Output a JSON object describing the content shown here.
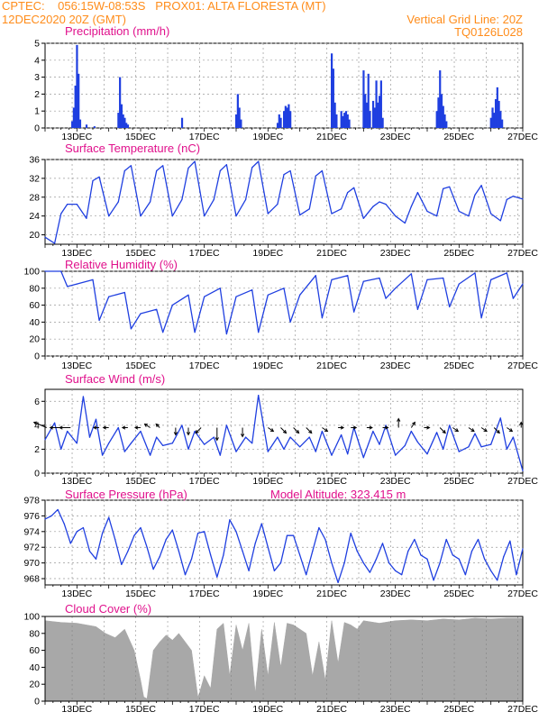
{
  "header": {
    "line1_left": "CPTEC:    056:15W-08:53S   PROX01: ALTA FLORESTA (MT)",
    "line2_left": "12DEC2020 20Z (GMT)",
    "vertical_grid": "Vertical Grid Line: 20Z",
    "code": "TQ0126L028"
  },
  "colors": {
    "header": "#ff8c1a",
    "title": "#e0118c",
    "series": "#1f3fe0",
    "cloud": "#a8a8a8",
    "grid": "#9a9a9a"
  },
  "chart_data": [
    {
      "type": "bar",
      "title": "Precipitation  (mm/h)",
      "x_labels": [
        "13DEC",
        "15DEC",
        "17DEC",
        "19DEC",
        "21DEC",
        "23DEC",
        "25DEC",
        "27DEC"
      ],
      "ylim": [
        0,
        5
      ],
      "yticks": [
        "0",
        "1",
        "2",
        "3",
        "4",
        "5"
      ],
      "x_days": [
        12.85,
        12.9,
        12.95,
        13.0,
        13.05,
        13.1,
        13.3,
        13.55,
        14.3,
        14.35,
        14.4,
        14.45,
        14.5,
        14.55,
        14.6,
        16.3,
        18.0,
        18.05,
        18.1,
        18.15,
        19.3,
        19.35,
        19.4,
        19.5,
        19.55,
        19.6,
        19.65,
        19.7,
        21.0,
        21.05,
        21.1,
        21.15,
        21.3,
        21.35,
        21.4,
        21.45,
        21.5,
        21.55,
        22.0,
        22.05,
        22.1,
        22.15,
        22.2,
        22.3,
        22.35,
        22.4,
        22.45,
        22.5,
        22.55,
        22.6,
        24.3,
        24.35,
        24.4,
        24.45,
        24.5,
        24.55,
        24.6,
        26.0,
        26.05,
        26.1,
        26.15,
        26.2,
        26.25,
        26.3,
        26.35
      ],
      "values": [
        0.4,
        1.2,
        2.5,
        4.9,
        3.2,
        0.5,
        0.2,
        0.1,
        0.9,
        3.0,
        1.4,
        0.8,
        0.6,
        0.3,
        0.2,
        0.6,
        0.8,
        2.0,
        1.2,
        0.5,
        0.3,
        0.8,
        0.6,
        1.0,
        1.3,
        1.2,
        1.4,
        1.0,
        4.4,
        3.5,
        1.5,
        0.8,
        1.0,
        0.7,
        0.9,
        1.0,
        0.8,
        0.5,
        3.4,
        2.0,
        1.5,
        3.2,
        1.0,
        1.6,
        1.2,
        2.8,
        1.5,
        1.9,
        2.8,
        0.6,
        1.0,
        1.8,
        3.4,
        2.0,
        1.3,
        0.8,
        0.4,
        0.6,
        1.2,
        0.9,
        1.7,
        2.4,
        1.6,
        1.0,
        0.5
      ]
    },
    {
      "type": "line",
      "title": "Surface Temperature (nC)",
      "x_labels": [
        "13DEC",
        "15DEC",
        "17DEC",
        "19DEC",
        "21DEC",
        "23DEC",
        "25DEC",
        "27DEC"
      ],
      "ylim": [
        18,
        36
      ],
      "yticks": [
        "20",
        "24",
        "28",
        "32",
        "36"
      ],
      "x_days": [
        12.0,
        12.3,
        12.5,
        12.7,
        13.0,
        13.3,
        13.5,
        13.7,
        14.0,
        14.3,
        14.5,
        14.7,
        15.0,
        15.3,
        15.5,
        15.7,
        16.0,
        16.3,
        16.5,
        16.7,
        17.0,
        17.3,
        17.5,
        17.7,
        18.0,
        18.3,
        18.5,
        18.7,
        19.0,
        19.3,
        19.5,
        19.7,
        20.0,
        20.3,
        20.5,
        20.7,
        21.0,
        21.3,
        21.5,
        21.7,
        22.0,
        22.3,
        22.5,
        22.7,
        23.0,
        23.3,
        23.5,
        23.7,
        24.0,
        24.3,
        24.5,
        24.7,
        25.0,
        25.3,
        25.5,
        25.7,
        26.0,
        26.3,
        26.5,
        26.7,
        27.0
      ],
      "values": [
        19.5,
        18.2,
        24.5,
        26.5,
        26.5,
        23.5,
        31.5,
        32.3,
        24.0,
        27.0,
        33.6,
        34.7,
        24.0,
        27.0,
        33.6,
        34.7,
        24.0,
        27.5,
        34.2,
        35.6,
        24.0,
        27.5,
        33.6,
        34.9,
        24.0,
        27.5,
        34.3,
        35.6,
        24.5,
        26.5,
        32.8,
        33.6,
        24.2,
        25.5,
        32.5,
        33.6,
        24.5,
        25.5,
        29.0,
        30.0,
        23.5,
        26.0,
        27.0,
        26.5,
        24.0,
        22.5,
        26.0,
        29.0,
        25.0,
        24.0,
        29.8,
        30.2,
        25.0,
        24.0,
        28.5,
        30.5,
        24.5,
        23.0,
        27.5,
        28.2,
        27.6
      ]
    },
    {
      "type": "line",
      "title": "Relative Humidity (%)",
      "x_labels": [
        "13DEC",
        "15DEC",
        "17DEC",
        "19DEC",
        "21DEC",
        "23DEC",
        "25DEC",
        "27DEC"
      ],
      "ylim": [
        0,
        100
      ],
      "yticks": [
        "0",
        "20",
        "40",
        "60",
        "80",
        "100"
      ],
      "x_days": [
        12.0,
        12.5,
        12.7,
        13.0,
        13.5,
        13.7,
        14.0,
        14.5,
        14.7,
        15.0,
        15.5,
        15.7,
        16.0,
        16.5,
        16.7,
        17.0,
        17.5,
        17.7,
        18.0,
        18.5,
        18.7,
        19.0,
        19.5,
        19.7,
        20.0,
        20.5,
        20.7,
        21.0,
        21.5,
        21.7,
        22.0,
        22.5,
        22.7,
        23.0,
        23.5,
        23.7,
        24.0,
        24.5,
        24.7,
        25.0,
        25.5,
        25.7,
        26.0,
        26.5,
        26.7,
        27.0
      ],
      "values": [
        100,
        100,
        82,
        85,
        90,
        42,
        70,
        75,
        32,
        50,
        55,
        28,
        60,
        72,
        28,
        70,
        80,
        26,
        70,
        78,
        28,
        72,
        80,
        40,
        72,
        95,
        45,
        90,
        95,
        52,
        88,
        92,
        68,
        80,
        97,
        55,
        90,
        92,
        58,
        85,
        98,
        45,
        90,
        98,
        68,
        85
      ]
    },
    {
      "type": "line",
      "title": "Surface Wind (m/s)",
      "x_labels": [
        "13DEC",
        "15DEC",
        "17DEC",
        "19DEC",
        "21DEC",
        "23DEC",
        "25DEC",
        "27DEC"
      ],
      "ylim": [
        0,
        7
      ],
      "yticks": [
        "0",
        "2",
        "4",
        "6"
      ],
      "x_days": [
        12.0,
        12.3,
        12.5,
        12.7,
        13.0,
        13.2,
        13.4,
        13.6,
        13.8,
        14.0,
        14.3,
        14.5,
        14.7,
        15.0,
        15.3,
        15.5,
        15.7,
        16.0,
        16.3,
        16.5,
        16.7,
        17.0,
        17.3,
        17.5,
        17.7,
        18.0,
        18.3,
        18.5,
        18.7,
        19.0,
        19.3,
        19.5,
        19.7,
        20.0,
        20.3,
        20.5,
        20.7,
        21.0,
        21.3,
        21.5,
        21.7,
        22.0,
        22.3,
        22.5,
        22.7,
        23.0,
        23.3,
        23.5,
        23.7,
        24.0,
        24.3,
        24.5,
        24.7,
        25.0,
        25.3,
        25.5,
        25.7,
        26.0,
        26.3,
        26.5,
        26.7,
        27.0
      ],
      "values": [
        2.8,
        4.2,
        2.0,
        3.5,
        2.5,
        6.4,
        3.0,
        4.5,
        1.5,
        2.5,
        3.8,
        1.8,
        2.5,
        3.5,
        1.5,
        3.0,
        2.3,
        2.5,
        4.0,
        2.0,
        3.5,
        2.4,
        3.0,
        1.5,
        4.0,
        1.8,
        3.0,
        2.5,
        6.5,
        1.8,
        3.0,
        2.0,
        3.0,
        2.2,
        3.0,
        1.8,
        3.5,
        1.5,
        3.2,
        1.6,
        3.8,
        1.3,
        3.5,
        2.4,
        4.0,
        1.5,
        2.3,
        3.5,
        2.6,
        1.6,
        3.4,
        2.0,
        4.0,
        1.8,
        2.2,
        3.3,
        2.2,
        2.4,
        4.6,
        2.0,
        3.0,
        0.2
      ],
      "arrows": [
        {
          "x": 12.05,
          "dx": -14,
          "dy": -6
        },
        {
          "x": 12.5,
          "dx": -12,
          "dy": 0
        },
        {
          "x": 12.8,
          "dx": -12,
          "dy": 0
        },
        {
          "x": 13.7,
          "dx": -6,
          "dy": 0
        },
        {
          "x": 14.0,
          "dx": -6,
          "dy": 0
        },
        {
          "x": 14.6,
          "dx": -6,
          "dy": 0
        },
        {
          "x": 15.0,
          "dx": -6,
          "dy": 0
        },
        {
          "x": 15.3,
          "dx": -6,
          "dy": -4
        },
        {
          "x": 15.6,
          "dx": -4,
          "dy": -4
        },
        {
          "x": 16.1,
          "dx": 0,
          "dy": 8
        },
        {
          "x": 16.5,
          "dx": 0,
          "dy": 8
        },
        {
          "x": 16.9,
          "dx": -6,
          "dy": 6
        },
        {
          "x": 17.4,
          "dx": 0,
          "dy": 14
        },
        {
          "x": 18.2,
          "dx": 0,
          "dy": 10
        },
        {
          "x": 19.0,
          "dx": 6,
          "dy": 4
        },
        {
          "x": 19.4,
          "dx": 6,
          "dy": 6
        },
        {
          "x": 19.8,
          "dx": 6,
          "dy": 6
        },
        {
          "x": 20.2,
          "dx": 6,
          "dy": 6
        },
        {
          "x": 20.7,
          "dx": 6,
          "dy": 4
        },
        {
          "x": 21.2,
          "dx": 6,
          "dy": 0
        },
        {
          "x": 21.6,
          "dx": 6,
          "dy": 0
        },
        {
          "x": 22.1,
          "dx": 6,
          "dy": 0
        },
        {
          "x": 22.6,
          "dx": 6,
          "dy": 0
        },
        {
          "x": 23.1,
          "dx": 0,
          "dy": -10
        },
        {
          "x": 23.5,
          "dx": 4,
          "dy": -6
        },
        {
          "x": 23.9,
          "dx": 6,
          "dy": 0
        },
        {
          "x": 24.4,
          "dx": 6,
          "dy": 6
        },
        {
          "x": 24.8,
          "dx": 6,
          "dy": 4
        },
        {
          "x": 25.3,
          "dx": 6,
          "dy": 4
        },
        {
          "x": 25.7,
          "dx": 6,
          "dy": 4
        },
        {
          "x": 26.1,
          "dx": 6,
          "dy": 6
        },
        {
          "x": 26.5,
          "dx": 6,
          "dy": 4
        },
        {
          "x": 26.95,
          "dx": 0,
          "dy": -6
        }
      ]
    },
    {
      "type": "line",
      "title": "Surface Pressure (hPa)",
      "annotation": "Model Altitude: 323.415 m",
      "x_labels": [
        "13DEC",
        "15DEC",
        "17DEC",
        "19DEC",
        "21DEC",
        "23DEC",
        "25DEC",
        "27DEC"
      ],
      "ylim": [
        967.2,
        978
      ],
      "yticks": [
        "968",
        "970",
        "972",
        "974",
        "976",
        "978"
      ],
      "x_days": [
        12.0,
        12.2,
        12.4,
        12.6,
        12.8,
        13.0,
        13.2,
        13.4,
        13.6,
        13.8,
        14.0,
        14.2,
        14.4,
        14.6,
        14.8,
        15.0,
        15.2,
        15.4,
        15.6,
        15.8,
        16.0,
        16.2,
        16.4,
        16.6,
        16.8,
        17.0,
        17.2,
        17.4,
        17.6,
        17.8,
        18.0,
        18.2,
        18.4,
        18.6,
        18.8,
        19.0,
        19.2,
        19.4,
        19.6,
        19.8,
        20.0,
        20.2,
        20.4,
        20.6,
        20.8,
        21.0,
        21.2,
        21.4,
        21.6,
        21.8,
        22.0,
        22.2,
        22.4,
        22.6,
        22.8,
        23.0,
        23.2,
        23.4,
        23.6,
        23.8,
        24.0,
        24.2,
        24.4,
        24.6,
        24.8,
        25.0,
        25.2,
        25.4,
        25.6,
        25.8,
        26.0,
        26.2,
        26.4,
        26.6,
        26.8,
        27.0
      ],
      "values": [
        975.6,
        976.0,
        976.8,
        975.0,
        972.5,
        974.0,
        974.5,
        971.5,
        970.5,
        973.8,
        975.8,
        973.0,
        969.8,
        971.5,
        973.5,
        974.5,
        972.0,
        969.2,
        970.8,
        973.0,
        974.2,
        971.5,
        968.5,
        970.5,
        973.8,
        974.0,
        971.0,
        968.2,
        971.0,
        975.5,
        974.0,
        971.5,
        969.0,
        972.5,
        975.0,
        972.0,
        969.0,
        970.0,
        973.5,
        973.5,
        971.0,
        968.5,
        971.5,
        974.5,
        973.0,
        970.0,
        967.5,
        970.0,
        973.8,
        971.5,
        970.0,
        968.8,
        970.5,
        972.5,
        970.0,
        969.0,
        968.5,
        971.5,
        973.0,
        971.0,
        970.5,
        967.8,
        970.0,
        973.0,
        971.0,
        970.5,
        968.5,
        971.5,
        973.0,
        970.5,
        969.0,
        967.8,
        970.8,
        972.8,
        968.5,
        971.8
      ]
    },
    {
      "type": "area",
      "title": "Cloud Cover (%)",
      "x_labels": [
        "13DEC",
        "15DEC",
        "17DEC",
        "19DEC",
        "21DEC",
        "23DEC",
        "25DEC",
        "27DEC"
      ],
      "ylim": [
        0,
        100
      ],
      "yticks": [
        "0",
        "20",
        "40",
        "60",
        "80",
        "100"
      ],
      "x_days": [
        12.0,
        12.5,
        13.0,
        13.3,
        13.6,
        13.9,
        14.2,
        14.5,
        14.8,
        15.0,
        15.1,
        15.2,
        15.4,
        15.6,
        15.8,
        16.0,
        16.2,
        16.4,
        16.6,
        16.8,
        16.85,
        17.0,
        17.2,
        17.4,
        17.6,
        17.8,
        18.0,
        18.2,
        18.4,
        18.6,
        18.8,
        19.0,
        19.2,
        19.4,
        19.6,
        19.8,
        20.0,
        20.2,
        20.4,
        20.6,
        20.8,
        21.0,
        21.2,
        21.4,
        21.6,
        21.8,
        22.0,
        22.5,
        23.0,
        23.5,
        24.0,
        24.5,
        25.0,
        25.5,
        26.0,
        26.5,
        27.0
      ],
      "values": [
        95,
        93,
        92,
        90,
        88,
        80,
        75,
        85,
        60,
        25,
        5,
        3,
        60,
        70,
        78,
        72,
        80,
        70,
        60,
        5,
        10,
        30,
        15,
        85,
        92,
        30,
        90,
        60,
        92,
        10,
        85,
        30,
        93,
        40,
        92,
        90,
        85,
        80,
        30,
        70,
        25,
        95,
        45,
        93,
        90,
        85,
        95,
        92,
        95,
        96,
        95,
        97,
        96,
        98,
        97,
        98,
        98
      ]
    }
  ]
}
